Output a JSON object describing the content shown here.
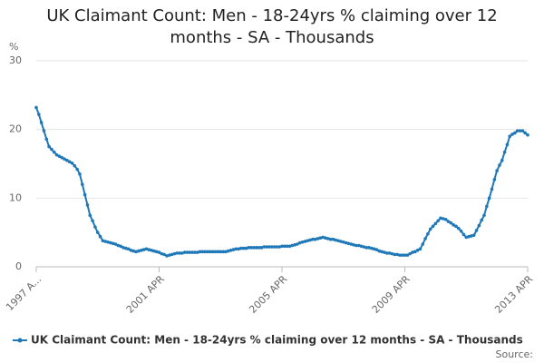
{
  "chart_data": {
    "type": "line",
    "title": "UK Claimant Count: Men - 18-24yrs % claiming over 12 months - SA - Thousands",
    "y_label": "%",
    "source": "Source:",
    "categories": [
      "1997 A...",
      null,
      null,
      null,
      null,
      null,
      null,
      null,
      null,
      null,
      null,
      null,
      null,
      null,
      null,
      null,
      null,
      null,
      null,
      null,
      null,
      null,
      null,
      null,
      null,
      null,
      null,
      null,
      null,
      null,
      null,
      null,
      null,
      null,
      null,
      null,
      null,
      null,
      null,
      null,
      null,
      null,
      null,
      null,
      null,
      null,
      null,
      null,
      "2001 APR",
      null,
      null,
      null,
      null,
      null,
      null,
      null,
      null,
      null,
      null,
      null,
      null,
      null,
      null,
      null,
      null,
      null,
      null,
      null,
      null,
      null,
      null,
      null,
      null,
      null,
      null,
      null,
      null,
      null,
      null,
      null,
      null,
      null,
      null,
      null,
      null,
      null,
      null,
      null,
      null,
      null,
      null,
      null,
      null,
      null,
      null,
      null,
      "2005 APR",
      null,
      null,
      null,
      null,
      null,
      null,
      null,
      null,
      null,
      null,
      null,
      null,
      null,
      null,
      null,
      null,
      null,
      null,
      null,
      null,
      null,
      null,
      null,
      null,
      null,
      null,
      null,
      null,
      null,
      null,
      null,
      null,
      null,
      null,
      null,
      null,
      null,
      null,
      null,
      null,
      null,
      null,
      null,
      null,
      null,
      null,
      null,
      "2009 APR",
      null,
      null,
      null,
      null,
      null,
      null,
      null,
      null,
      null,
      null,
      null,
      null,
      null,
      null,
      null,
      null,
      null,
      null,
      null,
      null,
      null,
      null,
      null,
      null,
      null,
      null,
      null,
      null,
      null,
      null,
      null,
      null,
      null,
      null,
      null,
      null,
      null,
      null,
      null,
      null,
      null,
      null,
      null,
      null,
      null,
      null,
      null,
      "2013 APR"
    ],
    "series": [
      {
        "name": "UK Claimant Count: Men - 18-24yrs % claiming over 12 months - SA - Thousands",
        "color": "#1f78b8",
        "values": [
          23.2,
          22.2,
          21.0,
          19.8,
          18.6,
          17.5,
          17.1,
          16.7,
          16.3,
          16.1,
          15.9,
          15.7,
          15.5,
          15.3,
          15.1,
          14.7,
          14.2,
          13.5,
          12.0,
          10.5,
          9.0,
          7.5,
          6.7,
          5.8,
          5.0,
          4.4,
          3.8,
          3.7,
          3.6,
          3.5,
          3.4,
          3.3,
          3.1,
          3.0,
          2.8,
          2.7,
          2.6,
          2.4,
          2.3,
          2.2,
          2.3,
          2.4,
          2.5,
          2.6,
          2.5,
          2.4,
          2.3,
          2.2,
          2.1,
          1.9,
          1.8,
          1.6,
          1.7,
          1.8,
          1.9,
          2.0,
          2.0,
          2.0,
          2.1,
          2.1,
          2.1,
          2.1,
          2.1,
          2.1,
          2.2,
          2.2,
          2.2,
          2.2,
          2.2,
          2.2,
          2.2,
          2.2,
          2.2,
          2.2,
          2.2,
          2.3,
          2.4,
          2.5,
          2.6,
          2.6,
          2.7,
          2.7,
          2.7,
          2.8,
          2.8,
          2.8,
          2.8,
          2.8,
          2.8,
          2.9,
          2.9,
          2.9,
          2.9,
          2.9,
          2.9,
          2.9,
          3.0,
          3.0,
          3.0,
          3.0,
          3.1,
          3.2,
          3.3,
          3.5,
          3.6,
          3.7,
          3.8,
          3.9,
          4.0,
          4.0,
          4.1,
          4.2,
          4.3,
          4.2,
          4.1,
          4.0,
          4.0,
          3.9,
          3.8,
          3.7,
          3.6,
          3.5,
          3.4,
          3.3,
          3.2,
          3.1,
          3.1,
          3.0,
          2.9,
          2.8,
          2.8,
          2.7,
          2.6,
          2.5,
          2.3,
          2.2,
          2.1,
          2.0,
          2.0,
          1.9,
          1.8,
          1.8,
          1.7,
          1.7,
          1.7,
          1.7,
          1.9,
          2.1,
          2.2,
          2.4,
          2.6,
          3.3,
          4.1,
          4.8,
          5.5,
          5.9,
          6.3,
          6.7,
          7.1,
          7.0,
          6.9,
          6.6,
          6.4,
          6.1,
          5.9,
          5.6,
          5.2,
          4.7,
          4.3,
          4.4,
          4.5,
          4.6,
          5.3,
          6.0,
          6.8,
          7.5,
          8.8,
          10.0,
          11.3,
          12.7,
          14.0,
          14.8,
          15.5,
          16.7,
          17.8,
          19.0,
          19.3,
          19.5,
          19.8,
          19.8,
          19.8,
          19.5,
          19.2
        ]
      }
    ],
    "ylim": [
      0,
      30
    ],
    "yticks": [
      0,
      10,
      20,
      30
    ],
    "grid": true,
    "legend": "bottom"
  }
}
